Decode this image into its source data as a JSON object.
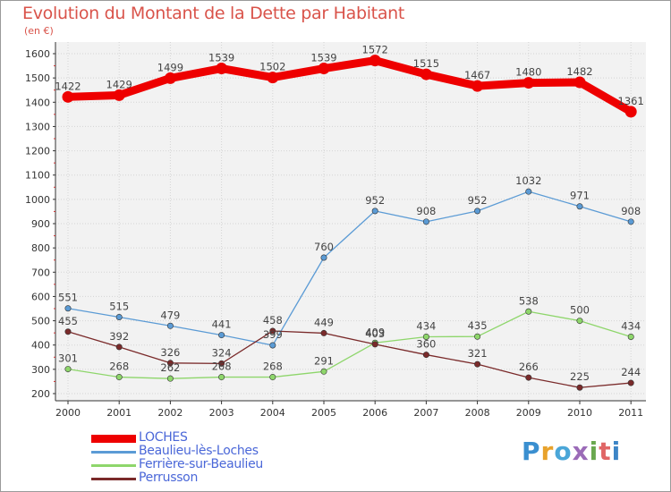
{
  "title": "Evolution du Montant de la Dette par Habitant",
  "subtitle": "(en €)",
  "logo": {
    "text": "Proxiti",
    "colors": [
      "#3a8fd0",
      "#e8a22b",
      "#4aa6d8",
      "#9b6bb8",
      "#6aa84f",
      "#e06666",
      "#3d85c6"
    ]
  },
  "chart_data": {
    "type": "line",
    "x": [
      "2000",
      "2001",
      "2002",
      "2003",
      "2004",
      "2005",
      "2006",
      "2007",
      "2008",
      "2009",
      "2010",
      "2011"
    ],
    "ylim": [
      200,
      1600
    ],
    "yticks": [
      200,
      300,
      400,
      500,
      600,
      700,
      800,
      900,
      1000,
      1100,
      1200,
      1300,
      1400,
      1500,
      1600
    ],
    "grid": true,
    "legend_position": "bottom-left",
    "series": [
      {
        "name": "LOCHES",
        "color": "#ee0000",
        "values": [
          1422,
          1429,
          1499,
          1539,
          1502,
          1539,
          1572,
          1515,
          1467,
          1480,
          1482,
          1361
        ]
      },
      {
        "name": "Beaulieu-lès-Loches",
        "color": "#5b9bd5",
        "values": [
          551,
          515,
          479,
          441,
          399,
          760,
          952,
          908,
          952,
          1032,
          971,
          908
        ]
      },
      {
        "name": "Ferrière-sur-Beaulieu",
        "color": "#8ed66b",
        "values": [
          301,
          268,
          262,
          268,
          268,
          291,
          409,
          434,
          435,
          538,
          500,
          434
        ]
      },
      {
        "name": "Perrusson",
        "color": "#7a2a2a",
        "values": [
          455,
          392,
          326,
          324,
          458,
          449,
          403,
          360,
          321,
          266,
          225,
          244
        ]
      }
    ]
  }
}
